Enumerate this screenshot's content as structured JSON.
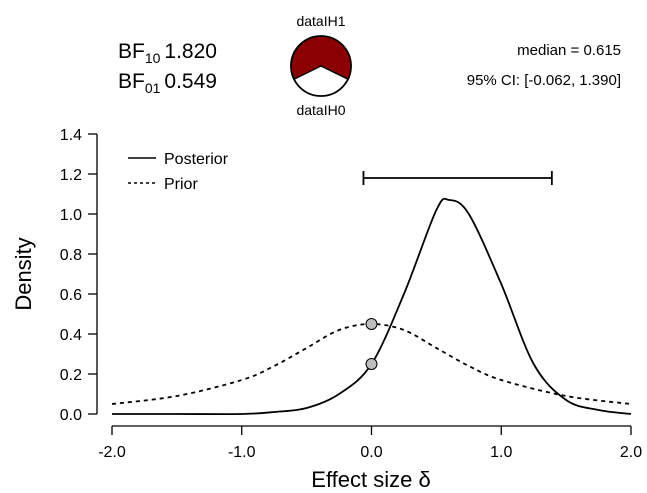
{
  "header": {
    "bf10_prefix": "BF",
    "bf10_sub": "10",
    "bf10_value": "1.820",
    "bf01_prefix": "BF",
    "bf01_sub": "01",
    "bf01_value": "0.549",
    "wheel_top_label": "dataIH1",
    "wheel_bottom_label": "dataIH0",
    "median_text": "median = 0.615",
    "ci_text": "95% CI: [-0.062, 1.390]"
  },
  "colors": {
    "h1": "#8b0000",
    "h0": "#ffffff",
    "point_fill": "#bebebe"
  },
  "chart_data": {
    "type": "line",
    "xlabel": "Effect size δ",
    "ylabel": "Density",
    "xlim": [
      -2.0,
      2.0
    ],
    "ylim": [
      0.0,
      1.4
    ],
    "xticks": [
      "-2.0",
      "-1.0",
      "0.0",
      "1.0",
      "2.0"
    ],
    "yticks": [
      "0.0",
      "0.2",
      "0.4",
      "0.6",
      "0.8",
      "1.0",
      "1.2",
      "1.4"
    ],
    "legend": [
      "Posterior",
      "Prior"
    ],
    "legend_position": "top-left",
    "series": [
      {
        "name": "Posterior",
        "style": "solid",
        "x": [
          -2.0,
          -1.5,
          -1.0,
          -0.75,
          -0.5,
          -0.25,
          0.0,
          0.25,
          0.5,
          0.6,
          0.75,
          1.0,
          1.25,
          1.5,
          1.75,
          2.0
        ],
        "y": [
          0.0,
          0.0,
          0.0,
          0.01,
          0.03,
          0.1,
          0.25,
          0.6,
          1.02,
          1.07,
          1.0,
          0.65,
          0.25,
          0.07,
          0.02,
          0.0
        ]
      },
      {
        "name": "Prior",
        "style": "dashed",
        "x": [
          -2.0,
          -1.5,
          -1.0,
          -0.75,
          -0.5,
          -0.25,
          0.0,
          0.25,
          0.5,
          0.75,
          1.0,
          1.5,
          2.0
        ],
        "y": [
          0.05,
          0.09,
          0.17,
          0.24,
          0.33,
          0.42,
          0.45,
          0.42,
          0.33,
          0.24,
          0.17,
          0.09,
          0.05
        ]
      }
    ],
    "points": [
      {
        "x": 0.0,
        "y": 0.45
      },
      {
        "x": 0.0,
        "y": 0.25
      }
    ],
    "credible_interval": {
      "lower": -0.062,
      "upper": 1.39,
      "y": 1.18
    },
    "bf_wheel": {
      "h1": 0.645,
      "h0": 0.355
    }
  }
}
